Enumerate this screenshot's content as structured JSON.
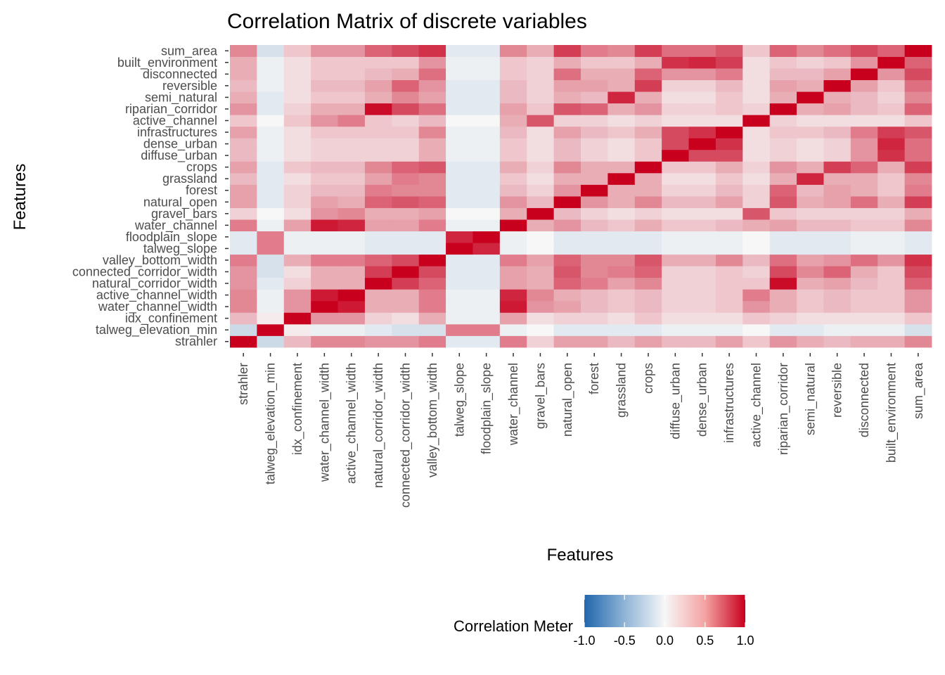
{
  "chart_data": {
    "type": "heatmap",
    "title": "Correlation Matrix of discrete variables",
    "xlabel": "Features",
    "ylabel": "Features",
    "variables": [
      "strahler",
      "talweg_elevation_min",
      "idx_confinement",
      "water_channel_width",
      "active_channel_width",
      "natural_corridor_width",
      "connected_corridor_width",
      "valley_bottom_width",
      "talweg_slope",
      "floodplain_slope",
      "water_channel",
      "gravel_bars",
      "natural_open",
      "forest",
      "grassland",
      "crops",
      "diffuse_urban",
      "dense_urban",
      "infrastructures",
      "active_channel",
      "riparian_corridor",
      "semi_natural",
      "reversible",
      "disconnected",
      "built_environment",
      "sum_area"
    ],
    "legend": {
      "title": "Correlation Meter",
      "position": "bottom",
      "limits": [
        -1,
        1
      ],
      "ticks": [
        "-1.0",
        "-0.5",
        "0.0",
        "0.5",
        "1.0"
      ],
      "colors": {
        "low": "#2166ac",
        "mid": "#f7f7f7",
        "high": "#c8001e"
      }
    },
    "matrix": [
      [
        1.0,
        -0.2,
        0.25,
        0.45,
        0.45,
        0.4,
        0.4,
        0.5,
        -0.1,
        -0.1,
        0.5,
        0.15,
        0.35,
        0.35,
        0.25,
        0.35,
        0.25,
        0.25,
        0.35,
        0.2,
        0.4,
        0.3,
        0.25,
        0.3,
        0.3,
        0.45
      ],
      [
        -0.2,
        1.0,
        0.05,
        -0.05,
        -0.05,
        -0.1,
        -0.15,
        -0.15,
        0.5,
        0.5,
        -0.05,
        0.0,
        -0.1,
        -0.1,
        -0.1,
        -0.1,
        -0.05,
        -0.05,
        -0.05,
        0.0,
        -0.1,
        -0.1,
        -0.05,
        -0.05,
        -0.05,
        -0.15
      ],
      [
        0.25,
        0.05,
        1.0,
        0.4,
        0.4,
        0.15,
        0.1,
        0.3,
        -0.05,
        -0.05,
        0.35,
        0.1,
        0.15,
        0.15,
        0.1,
        0.2,
        0.1,
        0.1,
        0.1,
        0.2,
        0.15,
        0.1,
        0.1,
        0.1,
        0.1,
        0.2
      ],
      [
        0.45,
        -0.05,
        0.4,
        1.0,
        0.9,
        0.3,
        0.3,
        0.5,
        -0.05,
        -0.05,
        0.9,
        0.4,
        0.35,
        0.25,
        0.2,
        0.25,
        0.15,
        0.15,
        0.2,
        0.4,
        0.3,
        0.2,
        0.25,
        0.2,
        0.2,
        0.4
      ],
      [
        0.45,
        -0.05,
        0.4,
        0.9,
        1.0,
        0.3,
        0.3,
        0.5,
        -0.05,
        -0.05,
        0.85,
        0.45,
        0.3,
        0.25,
        0.2,
        0.25,
        0.15,
        0.15,
        0.2,
        0.5,
        0.3,
        0.2,
        0.25,
        0.2,
        0.2,
        0.4
      ],
      [
        0.4,
        -0.1,
        0.15,
        0.3,
        0.3,
        1.0,
        0.75,
        0.6,
        -0.1,
        -0.1,
        0.35,
        0.3,
        0.6,
        0.5,
        0.35,
        0.45,
        0.15,
        0.15,
        0.2,
        0.2,
        0.95,
        0.3,
        0.35,
        0.25,
        0.2,
        0.6
      ],
      [
        0.4,
        -0.15,
        0.1,
        0.3,
        0.3,
        0.75,
        1.0,
        0.7,
        -0.1,
        -0.1,
        0.35,
        0.3,
        0.65,
        0.45,
        0.5,
        0.6,
        0.15,
        0.15,
        0.2,
        0.15,
        0.7,
        0.45,
        0.6,
        0.3,
        0.2,
        0.7
      ],
      [
        0.5,
        -0.15,
        0.3,
        0.5,
        0.5,
        0.6,
        0.7,
        1.0,
        -0.1,
        -0.1,
        0.5,
        0.35,
        0.6,
        0.45,
        0.45,
        0.65,
        0.3,
        0.3,
        0.45,
        0.25,
        0.55,
        0.35,
        0.4,
        0.55,
        0.4,
        0.8
      ],
      [
        -0.1,
        0.5,
        -0.05,
        -0.05,
        -0.05,
        -0.1,
        -0.1,
        -0.1,
        1.0,
        0.85,
        -0.05,
        0.0,
        -0.1,
        -0.1,
        -0.1,
        -0.1,
        -0.05,
        -0.05,
        -0.05,
        0.0,
        -0.1,
        -0.1,
        -0.1,
        -0.05,
        -0.05,
        -0.1
      ],
      [
        -0.1,
        0.5,
        -0.05,
        -0.05,
        -0.05,
        -0.1,
        -0.1,
        -0.1,
        0.85,
        1.0,
        -0.05,
        0.0,
        -0.1,
        -0.1,
        -0.1,
        -0.1,
        -0.05,
        -0.05,
        -0.05,
        0.0,
        -0.1,
        -0.1,
        -0.1,
        -0.05,
        -0.05,
        -0.1
      ],
      [
        0.5,
        -0.05,
        0.35,
        0.9,
        0.85,
        0.35,
        0.35,
        0.5,
        -0.05,
        -0.05,
        1.0,
        0.3,
        0.4,
        0.25,
        0.2,
        0.3,
        0.2,
        0.2,
        0.25,
        0.3,
        0.35,
        0.25,
        0.25,
        0.2,
        0.2,
        0.45
      ],
      [
        0.15,
        0.0,
        0.1,
        0.4,
        0.45,
        0.3,
        0.3,
        0.35,
        0.0,
        0.0,
        0.3,
        1.0,
        0.25,
        0.15,
        0.1,
        0.15,
        0.1,
        0.1,
        0.1,
        0.65,
        0.2,
        0.15,
        0.15,
        0.15,
        0.15,
        0.3
      ],
      [
        0.35,
        -0.1,
        0.15,
        0.35,
        0.3,
        0.6,
        0.65,
        0.6,
        -0.1,
        -0.1,
        0.4,
        0.25,
        1.0,
        0.4,
        0.3,
        0.45,
        0.25,
        0.25,
        0.35,
        0.15,
        0.65,
        0.3,
        0.35,
        0.55,
        0.3,
        0.75
      ],
      [
        0.35,
        -0.1,
        0.15,
        0.25,
        0.25,
        0.5,
        0.45,
        0.45,
        -0.1,
        -0.1,
        0.25,
        0.15,
        0.4,
        1.0,
        0.3,
        0.3,
        0.15,
        0.15,
        0.25,
        0.15,
        0.6,
        0.25,
        0.35,
        0.3,
        0.2,
        0.5
      ],
      [
        0.25,
        -0.1,
        0.1,
        0.2,
        0.2,
        0.35,
        0.5,
        0.45,
        -0.1,
        -0.1,
        0.2,
        0.1,
        0.3,
        0.3,
        1.0,
        0.3,
        0.1,
        0.1,
        0.2,
        0.1,
        0.3,
        0.85,
        0.3,
        0.3,
        0.2,
        0.45
      ],
      [
        0.35,
        -0.1,
        0.2,
        0.25,
        0.25,
        0.45,
        0.6,
        0.65,
        -0.1,
        -0.1,
        0.3,
        0.15,
        0.45,
        0.3,
        0.3,
        1.0,
        0.2,
        0.2,
        0.3,
        0.15,
        0.4,
        0.3,
        0.75,
        0.6,
        0.3,
        0.75
      ],
      [
        0.25,
        -0.05,
        0.1,
        0.15,
        0.15,
        0.15,
        0.15,
        0.3,
        -0.05,
        -0.05,
        0.2,
        0.1,
        0.25,
        0.15,
        0.1,
        0.2,
        1.0,
        0.7,
        0.7,
        0.1,
        0.15,
        0.1,
        0.15,
        0.4,
        0.8,
        0.55
      ],
      [
        0.25,
        -0.05,
        0.1,
        0.15,
        0.15,
        0.15,
        0.15,
        0.3,
        -0.05,
        -0.05,
        0.2,
        0.1,
        0.25,
        0.15,
        0.1,
        0.2,
        0.7,
        1.0,
        0.8,
        0.1,
        0.15,
        0.1,
        0.15,
        0.4,
        0.85,
        0.55
      ],
      [
        0.35,
        -0.05,
        0.1,
        0.2,
        0.2,
        0.2,
        0.2,
        0.45,
        -0.05,
        -0.05,
        0.25,
        0.1,
        0.35,
        0.25,
        0.2,
        0.3,
        0.7,
        0.8,
        1.0,
        0.1,
        0.2,
        0.2,
        0.25,
        0.5,
        0.75,
        0.65
      ],
      [
        0.2,
        0.0,
        0.2,
        0.4,
        0.5,
        0.2,
        0.15,
        0.25,
        0.0,
        0.0,
        0.3,
        0.65,
        0.15,
        0.15,
        0.1,
        0.15,
        0.1,
        0.1,
        0.1,
        1.0,
        0.15,
        0.1,
        0.1,
        0.1,
        0.1,
        0.2
      ],
      [
        0.4,
        -0.1,
        0.15,
        0.3,
        0.3,
        0.95,
        0.7,
        0.55,
        -0.1,
        -0.1,
        0.35,
        0.2,
        0.65,
        0.6,
        0.3,
        0.4,
        0.15,
        0.15,
        0.2,
        0.15,
        1.0,
        0.3,
        0.35,
        0.25,
        0.2,
        0.6
      ],
      [
        0.3,
        -0.1,
        0.1,
        0.2,
        0.2,
        0.3,
        0.45,
        0.35,
        -0.1,
        -0.1,
        0.25,
        0.15,
        0.3,
        0.25,
        0.85,
        0.3,
        0.1,
        0.1,
        0.2,
        0.1,
        0.3,
        1.0,
        0.3,
        0.25,
        0.15,
        0.45
      ],
      [
        0.25,
        -0.05,
        0.1,
        0.25,
        0.25,
        0.35,
        0.6,
        0.4,
        -0.1,
        -0.1,
        0.25,
        0.15,
        0.35,
        0.35,
        0.3,
        0.75,
        0.15,
        0.15,
        0.25,
        0.1,
        0.35,
        0.3,
        1.0,
        0.35,
        0.2,
        0.55
      ],
      [
        0.3,
        -0.05,
        0.1,
        0.2,
        0.2,
        0.25,
        0.3,
        0.55,
        -0.05,
        -0.05,
        0.2,
        0.15,
        0.55,
        0.3,
        0.3,
        0.6,
        0.4,
        0.4,
        0.5,
        0.1,
        0.25,
        0.25,
        0.35,
        1.0,
        0.4,
        0.7
      ],
      [
        0.3,
        -0.05,
        0.1,
        0.2,
        0.2,
        0.2,
        0.2,
        0.4,
        -0.05,
        -0.05,
        0.2,
        0.15,
        0.3,
        0.2,
        0.2,
        0.3,
        0.8,
        0.85,
        0.75,
        0.1,
        0.2,
        0.15,
        0.2,
        0.4,
        1.0,
        0.6
      ],
      [
        0.45,
        -0.15,
        0.2,
        0.4,
        0.4,
        0.6,
        0.7,
        0.8,
        -0.1,
        -0.1,
        0.45,
        0.3,
        0.75,
        0.5,
        0.45,
        0.75,
        0.55,
        0.55,
        0.65,
        0.2,
        0.6,
        0.45,
        0.55,
        0.7,
        0.6,
        1.0
      ]
    ]
  }
}
